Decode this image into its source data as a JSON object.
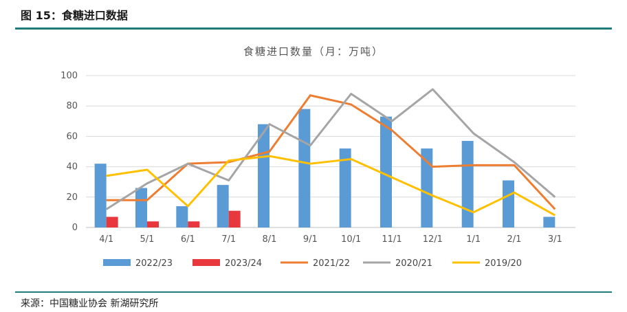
{
  "header": {
    "figure_title": "图 15：食糖进口数据"
  },
  "footer": {
    "source": "来源：中国糖业协会  新湖研究所"
  },
  "chart_data": {
    "type": "bar",
    "title": "食糖进口数量（月：万吨）",
    "categories": [
      "4/1",
      "5/1",
      "6/1",
      "7/1",
      "8/1",
      "9/1",
      "10/1",
      "11/1",
      "12/1",
      "1/1",
      "2/1",
      "3/1"
    ],
    "ylim": [
      0,
      100
    ],
    "yticks": [
      0,
      20,
      40,
      60,
      80,
      100
    ],
    "grid": true,
    "legend_position": "bottom",
    "series": [
      {
        "name": "2022/23",
        "type": "bar",
        "color": "#5b9bd5",
        "values": [
          42,
          26,
          14,
          28,
          68,
          78,
          52,
          73,
          52,
          57,
          31,
          7
        ]
      },
      {
        "name": "2023/24",
        "type": "bar",
        "color": "#e8383d",
        "values": [
          7,
          4,
          4,
          11,
          null,
          null,
          null,
          null,
          null,
          null,
          null,
          null
        ]
      },
      {
        "name": "2021/22",
        "type": "line",
        "color": "#ed7d31",
        "values": [
          18,
          18,
          42,
          43,
          50,
          87,
          81,
          64,
          40,
          41,
          41,
          12
        ]
      },
      {
        "name": "2020/21",
        "type": "line",
        "color": "#a5a5a5",
        "values": [
          12,
          29,
          42,
          31,
          68,
          54,
          88,
          70,
          91,
          62,
          43,
          20
        ]
      },
      {
        "name": "2019/20",
        "type": "line",
        "color": "#ffc000",
        "values": [
          34,
          38,
          14,
          44,
          47,
          42,
          45,
          33,
          21,
          10,
          23,
          8
        ]
      }
    ]
  }
}
